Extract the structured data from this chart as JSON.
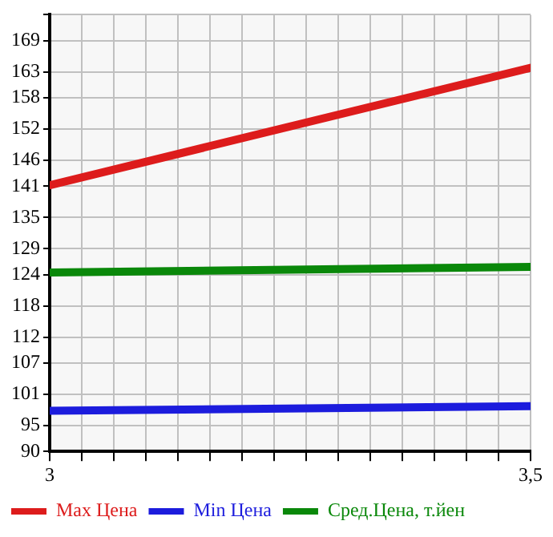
{
  "chart_data": {
    "type": "line",
    "x": [
      3,
      3.5
    ],
    "xlim": [
      3,
      3.5
    ],
    "xticks": [
      3,
      {
        "value": 3.0333,
        "label": null
      },
      {
        "value": 3.0667,
        "label": null
      },
      {
        "value": 3.1,
        "label": null
      },
      {
        "value": 3.1333,
        "label": null
      },
      {
        "value": 3.1667,
        "label": null
      },
      {
        "value": 3.2,
        "label": null
      },
      {
        "value": 3.2333,
        "label": null
      },
      {
        "value": 3.2667,
        "label": null
      },
      {
        "value": 3.3,
        "label": null
      },
      {
        "value": 3.3333,
        "label": null
      },
      {
        "value": 3.3667,
        "label": null
      },
      {
        "value": 3.4,
        "label": null
      },
      {
        "value": 3.4333,
        "label": null
      },
      {
        "value": 3.4667,
        "label": null
      },
      {
        "value": 3.5,
        "label": "3,5"
      }
    ],
    "ylim": [
      90,
      174
    ],
    "yticks": [
      90,
      95,
      101,
      107,
      112,
      118,
      124,
      129,
      135,
      141,
      146,
      152,
      158,
      163,
      169,
      {
        "value": 174,
        "label": null
      }
    ],
    "series": [
      {
        "name": "Max Цена",
        "color": "#dd1c1c",
        "values": [
          141.2,
          163.8
        ]
      },
      {
        "name": "Min Цена",
        "color": "#1c1cdd",
        "values": [
          97.8,
          98.7
        ]
      },
      {
        "name": "Сред.Цена, т.йен",
        "color": "#0a880a",
        "values": [
          124.4,
          125.5
        ]
      }
    ],
    "grid": true,
    "legend": "bottom",
    "marker": "none",
    "line_style": "solid"
  }
}
